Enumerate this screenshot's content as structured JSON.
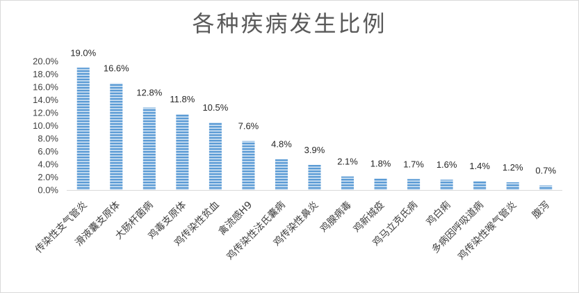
{
  "chart_data": {
    "type": "bar",
    "title": "各种疾病发生比例",
    "categories": [
      "传染性支气管炎",
      "滑液囊支原体",
      "大肠杆菌病",
      "鸡毒支原体",
      "鸡传染性贫血",
      "禽流感H9",
      "鸡传染性法氏囊病",
      "鸡传染性鼻炎",
      "鸡腺病毒",
      "鸡新城疫",
      "鸡马立克氏病",
      "鸡白痢",
      "多病因呼吸道病",
      "鸡传染性喉气管炎",
      "腹泻"
    ],
    "values": [
      19.0,
      16.6,
      12.8,
      11.8,
      10.5,
      7.6,
      4.8,
      3.9,
      2.1,
      1.8,
      1.7,
      1.6,
      1.4,
      1.2,
      0.7
    ],
    "data_labels": [
      "19.0%",
      "16.6%",
      "12.8%",
      "11.8%",
      "10.5%",
      "7.6%",
      "4.8%",
      "3.9%",
      "2.1%",
      "1.8%",
      "1.7%",
      "1.6%",
      "1.4%",
      "1.2%",
      "0.7%"
    ],
    "yticks": [
      0,
      2,
      4,
      6,
      8,
      10,
      12,
      14,
      16,
      18,
      20
    ],
    "ytick_labels": [
      "0.0%",
      "2.0%",
      "4.0%",
      "6.0%",
      "8.0%",
      "10.0%",
      "12.0%",
      "14.0%",
      "16.0%",
      "18.0%",
      "20.0%"
    ],
    "ylim": [
      0,
      20
    ],
    "xlabel": "",
    "ylabel": "",
    "grid": false,
    "legend": "none",
    "bar_color": "#5b9bd5",
    "bar_stripe_color": "#ffffff"
  }
}
